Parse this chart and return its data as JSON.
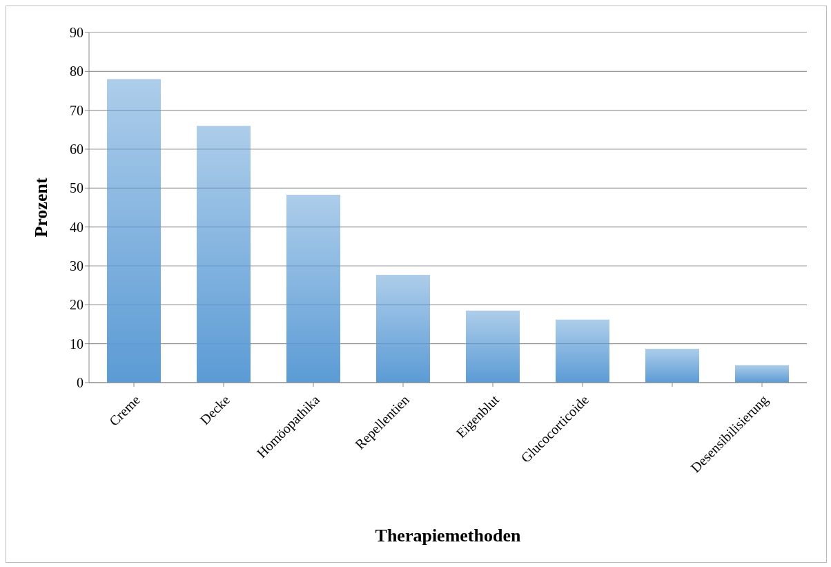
{
  "chart_data": {
    "type": "bar",
    "xlabel": "Therapiemethoden",
    "ylabel": "Prozent",
    "categories": [
      "Creme",
      "Decke",
      "Homöopathika",
      "Repellentien",
      "Eigenblut",
      "Glucocorticoide",
      null,
      "Desensibilisierung"
    ],
    "values": [
      78,
      66,
      48.3,
      27.7,
      18.5,
      16.2,
      8.7,
      4.5
    ],
    "color": "#5b9bd5",
    "ylim": [
      0,
      90
    ],
    "yticks": [
      0,
      10,
      20,
      30,
      40,
      50,
      60,
      70,
      80,
      90
    ],
    "grid": "y"
  }
}
